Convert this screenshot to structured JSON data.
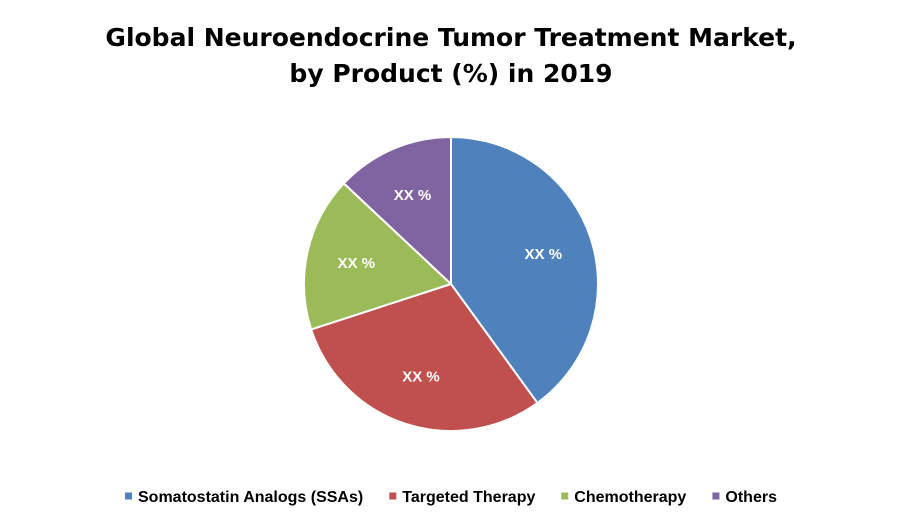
{
  "chart_data": {
    "type": "pie",
    "title_lines": [
      "Global Neuroendocrine Tumor Treatment Market,",
      "by Product (%) in 2019"
    ],
    "categories": [
      "Somatostatin Analogs (SSAs)",
      "Targeted Therapy",
      "Chemotherapy",
      "Others"
    ],
    "values": [
      40,
      30,
      17,
      13
    ],
    "data_labels": [
      "XX %",
      "XX %",
      "XX %",
      "XX %"
    ],
    "colors": [
      "#4F81BD",
      "#C0504D",
      "#9BBB59",
      "#8064A2"
    ],
    "legend_position": "bottom"
  }
}
